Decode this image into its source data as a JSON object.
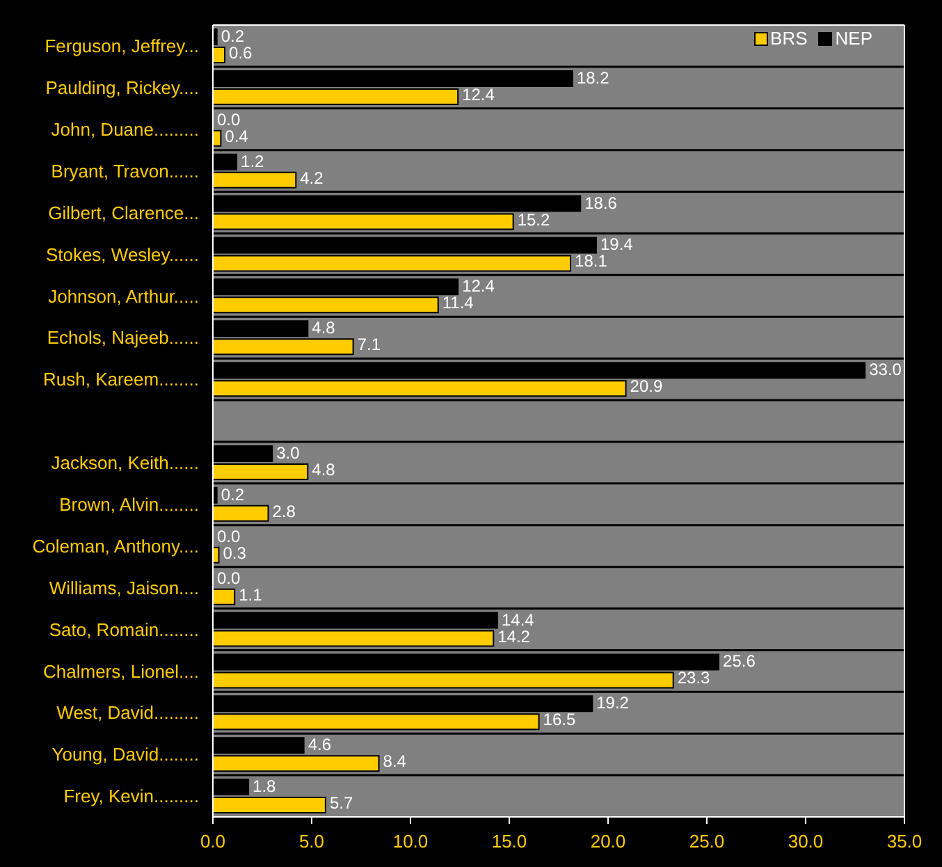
{
  "chart_data": {
    "type": "bar",
    "orientation": "horizontal",
    "categories": [
      "Ferguson, Jeffrey...",
      "Paulding, Rickey....",
      "John, Duane.........",
      "Bryant, Travon......",
      "Gilbert, Clarence...",
      "Stokes, Wesley......",
      "Johnson, Arthur.....",
      "Echols, Najeeb......",
      "Rush, Kareem........",
      null,
      "Jackson, Keith......",
      "Brown, Alvin........",
      "Coleman, Anthony....",
      "Williams, Jaison....",
      "Sato, Romain........",
      "Chalmers, Lionel....",
      "West, David.........",
      "Young, David........",
      "Frey, Kevin........."
    ],
    "series": [
      {
        "name": "NEP",
        "color": "#000000",
        "values": [
          0.2,
          18.2,
          0.0,
          1.2,
          18.6,
          19.4,
          12.4,
          4.8,
          33.0,
          null,
          3.0,
          0.2,
          0.0,
          0.0,
          14.4,
          25.6,
          19.2,
          4.6,
          1.8
        ],
        "value_labels": [
          "0.2",
          "18.2",
          "0.0",
          "1.2",
          "18.6",
          "19.4",
          "12.4",
          "4.8",
          "33.0",
          null,
          "3.0",
          "0.2",
          "0.0",
          "0.0",
          "14.4",
          "25.6",
          "19.2",
          "4.6",
          "1.8"
        ]
      },
      {
        "name": "BRS",
        "color": "#ffcc00",
        "values": [
          0.6,
          12.4,
          0.4,
          4.2,
          15.2,
          18.1,
          11.4,
          7.1,
          20.9,
          null,
          4.8,
          2.8,
          0.3,
          1.1,
          14.2,
          23.3,
          16.5,
          8.4,
          5.7
        ],
        "value_labels": [
          "0.6",
          "12.4",
          "0.4",
          "4.2",
          "15.2",
          "18.1",
          "11.4",
          "7.1",
          "20.9",
          null,
          "4.8",
          "2.8",
          "0.3",
          "1.1",
          "14.2",
          "23.3",
          "16.5",
          "8.4",
          "5.7"
        ]
      }
    ],
    "xlim": [
      0,
      35
    ],
    "xticks": [
      {
        "value": 0,
        "label": "0.0"
      },
      {
        "value": 5,
        "label": "5.0"
      },
      {
        "value": 10,
        "label": "10.0"
      },
      {
        "value": 15,
        "label": "15.0"
      },
      {
        "value": 20,
        "label": "20.0"
      },
      {
        "value": 25,
        "label": "25.0"
      },
      {
        "value": 30,
        "label": "30.0"
      },
      {
        "value": 35,
        "label": "35.0"
      }
    ],
    "grid": "y",
    "legend": "top right"
  }
}
